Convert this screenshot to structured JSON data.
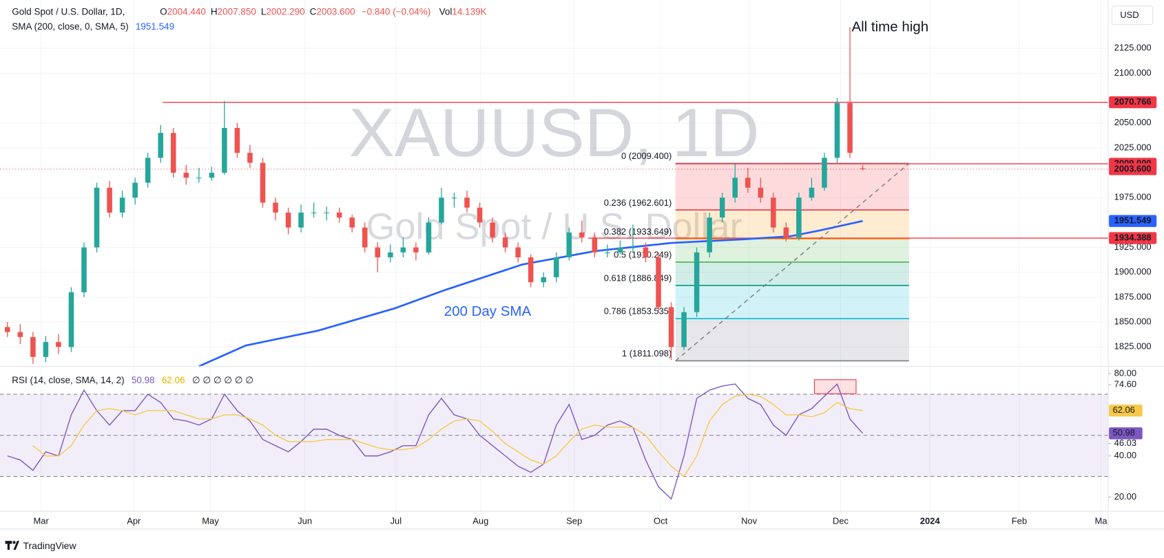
{
  "header": {
    "symbol": "Gold Spot / U.S. Dollar, 1D,",
    "ohlc": [
      {
        "key": "O",
        "value": "2004.440"
      },
      {
        "key": "H",
        "value": "2007.850"
      },
      {
        "key": "L",
        "value": "2002.290"
      },
      {
        "key": "C",
        "value": "2003.600"
      }
    ],
    "change": "−0.840 (−0.04%)",
    "volume_key": "Vol",
    "volume": "14.139K"
  },
  "chart_data": [
    {
      "type": "candlestick",
      "currency": "USD",
      "watermark_title": "XAUUSD, 1D",
      "watermark_subtitle": "Gold Spot / U.S. Dollar",
      "up_color": "#26a69a",
      "down_color": "#ef5350",
      "x": [
        0,
        3,
        6,
        9,
        12,
        15,
        18,
        21,
        24,
        27,
        30,
        33,
        36,
        39,
        42,
        45,
        48,
        51,
        54,
        57,
        60,
        63,
        66,
        69,
        72,
        75,
        78,
        81,
        84,
        87,
        90,
        93,
        96,
        99,
        102,
        105,
        108,
        111,
        114,
        117,
        120,
        123,
        126,
        129,
        132,
        135,
        138,
        141,
        144,
        147,
        150,
        153,
        156,
        159,
        162,
        165,
        168,
        171,
        174,
        177,
        180,
        183,
        186,
        189,
        192,
        195,
        198,
        201
      ],
      "open": [
        1845,
        1840,
        1835,
        1815,
        1830,
        1825,
        1880,
        1925,
        1985,
        1960,
        1975,
        1990,
        2015,
        2040,
        2000,
        1995,
        1995,
        2000,
        2045,
        2020,
        2010,
        1970,
        1960,
        1945,
        1960,
        1960,
        1960,
        1955,
        1945,
        1925,
        1915,
        1920,
        1925,
        1920,
        1950,
        1975,
        1975,
        1965,
        1950,
        1935,
        1925,
        1915,
        1890,
        1895,
        1915,
        1940,
        1935,
        1920,
        1920,
        1925,
        1925,
        1915,
        1865,
        1825,
        1860,
        1920,
        1955,
        1975,
        1995,
        1985,
        1975,
        1945,
        1935,
        1975,
        1985,
        2015,
        2070,
        2004.44
      ],
      "high": [
        1850,
        1848,
        1840,
        1836,
        1838,
        1885,
        1930,
        1990,
        1992,
        1982,
        1995,
        2020,
        2048,
        2045,
        2008,
        2005,
        2006,
        2072,
        2050,
        2028,
        2015,
        1975,
        1965,
        1968,
        1970,
        1966,
        1965,
        1958,
        1950,
        1930,
        1928,
        1935,
        1930,
        1955,
        1985,
        1980,
        1982,
        1970,
        1955,
        1940,
        1930,
        1918,
        1900,
        1920,
        1945,
        1952,
        1940,
        1928,
        1932,
        1948,
        1930,
        1920,
        1870,
        1865,
        1925,
        1960,
        1980,
        2009,
        2005,
        1995,
        1980,
        1950,
        1980,
        1995,
        2020,
        2075,
        2146,
        2007.85
      ],
      "low": [
        1835,
        1828,
        1808,
        1810,
        1818,
        1820,
        1875,
        1920,
        1955,
        1955,
        1968,
        1985,
        2010,
        1995,
        1988,
        1990,
        1992,
        1998,
        2015,
        2005,
        1965,
        1952,
        1938,
        1940,
        1955,
        1952,
        1950,
        1940,
        1920,
        1900,
        1910,
        1915,
        1912,
        1918,
        1948,
        1965,
        1960,
        1945,
        1930,
        1920,
        1910,
        1885,
        1885,
        1890,
        1912,
        1930,
        1915,
        1915,
        1918,
        1920,
        1910,
        1860,
        1812,
        1822,
        1855,
        1915,
        1950,
        1970,
        1980,
        1970,
        1940,
        1931,
        1932,
        1972,
        1982,
        2010,
        2015,
        2002.29
      ],
      "close": [
        1840,
        1835,
        1815,
        1830,
        1825,
        1880,
        1925,
        1985,
        1960,
        1975,
        1990,
        2015,
        2040,
        2000,
        1995,
        1995,
        2000,
        2045,
        2020,
        2010,
        1970,
        1960,
        1945,
        1960,
        1960,
        1960,
        1955,
        1945,
        1925,
        1915,
        1920,
        1925,
        1920,
        1950,
        1975,
        1975,
        1965,
        1950,
        1935,
        1925,
        1915,
        1890,
        1895,
        1915,
        1940,
        1935,
        1920,
        1920,
        1925,
        1925,
        1915,
        1865,
        1825,
        1860,
        1920,
        1955,
        1975,
        1995,
        1985,
        1975,
        1945,
        1935,
        1975,
        1985,
        2015,
        2070,
        2020,
        2003.6
      ],
      "last_label": "2003.600",
      "last_color": "#f23645",
      "xlim": [
        -1.75,
        258.7
      ],
      "xticks": [
        {
          "value": 7.9,
          "label": "Mar"
        },
        {
          "value": 29.7,
          "label": "Apr"
        },
        {
          "value": 47.7,
          "label": "May"
        },
        {
          "value": 69.9,
          "label": "Jun"
        },
        {
          "value": 91.3,
          "label": "Jul"
        },
        {
          "value": 111.2,
          "label": "Aug"
        },
        {
          "value": 133.2,
          "label": "Sep"
        },
        {
          "value": 153.5,
          "label": "Oct"
        },
        {
          "value": 174.3,
          "label": "Nov"
        },
        {
          "value": 195.8,
          "label": "Dec"
        },
        {
          "value": 216.8,
          "label": "2024"
        },
        {
          "value": 237.8,
          "label": "Feb"
        },
        {
          "value": 257,
          "label": "Ma"
        }
      ],
      "ylim": [
        1805.6,
        2173.5
      ],
      "yticks": [
        {
          "value": 1825,
          "label": "1825.000"
        },
        {
          "value": 1850,
          "label": "1850.000"
        },
        {
          "value": 1875,
          "label": "1875.000"
        },
        {
          "value": 1900,
          "label": "1900.000"
        },
        {
          "value": 1925,
          "label": "1925.000"
        },
        {
          "value": 1975,
          "label": "1975.000"
        },
        {
          "value": 2025,
          "label": "2025.000"
        },
        {
          "value": 2050,
          "label": "2050.000"
        },
        {
          "value": 2100,
          "label": "2100.000"
        },
        {
          "value": 2125,
          "label": "2125.000"
        }
      ],
      "grid": true,
      "sma": {
        "name": "SMA (200, close, 0, SMA, 5)",
        "value_label": "1951.549",
        "color": "#2962ff",
        "x": [
          45,
          56,
          73,
          91,
          103,
          121,
          138,
          156,
          173,
          184,
          191,
          201
        ],
        "values": [
          1805.6,
          1826.5,
          1841.4,
          1863.8,
          1882.5,
          1907.8,
          1921.3,
          1929.5,
          1933.2,
          1936.2,
          1942.2,
          1951.549
        ]
      },
      "hlines": [
        {
          "value": 2070.766,
          "label": "2070.766",
          "color": "#f23645",
          "x_from": 36.5
        },
        {
          "value": 2009.0,
          "label": "2009.000",
          "color": "#f23645",
          "x_from": 157
        },
        {
          "value": 1934.388,
          "label": "1934.388",
          "color": "#f23645",
          "x_from": 136.5
        }
      ],
      "fib": {
        "x_range": [
          157,
          211.9
        ],
        "levels": [
          {
            "label": "0 (2009.400)",
            "value": 2009.4,
            "color": "#787b86"
          },
          {
            "label": "0.236 (1962.601)",
            "value": 1962.601,
            "color": "#f23645"
          },
          {
            "label": "0.382 (1933.649)",
            "value": 1933.649,
            "color": "#ff9800"
          },
          {
            "label": "0.5 (1910.249)",
            "value": 1910.249,
            "color": "#4caf50"
          },
          {
            "label": "0.618 (1886.849)",
            "value": 1886.849,
            "color": "#089981"
          },
          {
            "label": "0.786 (1853.535)",
            "value": 1853.535,
            "color": "#00bcd4"
          },
          {
            "label": "1 (1811.098)",
            "value": 1811.098,
            "color": "#787b86"
          }
        ]
      },
      "annotations": [
        "All time high",
        "200 Day SMA"
      ]
    },
    {
      "type": "line",
      "title": "RSI (14, close, SMA, 14, 2)",
      "placeholders": "∅ ∅ ∅ ∅ ∅ ∅",
      "x": [
        0,
        3,
        6,
        9,
        12,
        15,
        18,
        21,
        24,
        27,
        30,
        33,
        36,
        39,
        42,
        45,
        48,
        51,
        54,
        57,
        60,
        63,
        66,
        69,
        72,
        75,
        78,
        81,
        84,
        87,
        90,
        93,
        96,
        99,
        102,
        105,
        108,
        111,
        114,
        117,
        120,
        123,
        126,
        129,
        132,
        135,
        138,
        141,
        144,
        147,
        150,
        153,
        156,
        159,
        162,
        165,
        168,
        171,
        174,
        177,
        180,
        183,
        186,
        189,
        192,
        195,
        198,
        201
      ],
      "series": [
        {
          "color": "#7e57c2",
          "value_label": "50.98",
          "values": [
            40,
            38,
            33,
            42,
            40,
            60,
            72,
            62,
            55,
            62,
            62,
            70,
            66,
            58,
            57,
            55,
            58,
            70,
            62,
            57,
            48,
            45,
            42,
            47,
            53,
            53,
            50,
            48,
            40,
            40,
            42,
            45,
            45,
            60,
            68,
            60,
            58,
            50,
            45,
            40,
            35,
            32,
            36,
            55,
            65,
            48,
            50,
            55,
            57,
            54,
            38,
            25,
            19,
            40,
            68,
            72,
            74,
            75,
            68,
            65,
            55,
            50,
            60,
            63,
            69,
            75,
            58,
            50.98
          ]
        },
        {
          "color": "#f7c948",
          "value_label": "62.06",
          "values": [
            null,
            null,
            45,
            40,
            40,
            45,
            55,
            62,
            63,
            62,
            60,
            62,
            62,
            62,
            60,
            58,
            58,
            60,
            60,
            58,
            55,
            50,
            47,
            47,
            47,
            48,
            48,
            48,
            46,
            44,
            43,
            43,
            44,
            48,
            53,
            57,
            58,
            57,
            52,
            46,
            42,
            38,
            36,
            40,
            47,
            53,
            55,
            54,
            54,
            54,
            50,
            42,
            35,
            30,
            40,
            57,
            65,
            69,
            70,
            69,
            65,
            60,
            60,
            59,
            61,
            66,
            63,
            62.06
          ]
        }
      ],
      "levels": [
        70,
        50,
        30
      ],
      "ylim": [
        13.1,
        83.6
      ],
      "yticks": [
        {
          "value": 80,
          "label": "80.00"
        },
        {
          "value": 74.6,
          "label": "74.60"
        },
        {
          "value": 46.03,
          "label": "46.03"
        },
        {
          "value": 40,
          "label": "40.00"
        },
        {
          "value": 20,
          "label": "20.00"
        }
      ]
    }
  ],
  "footer": {
    "brand": "TradingView"
  }
}
